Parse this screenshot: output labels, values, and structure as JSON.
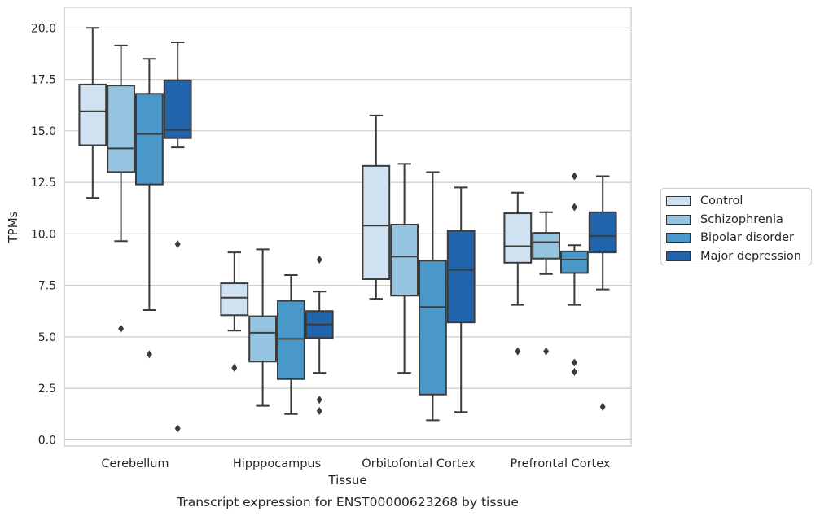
{
  "chart_data": {
    "type": "box",
    "title": "Transcript expression for ENST00000623268 by tissue",
    "xlabel": "Tissue",
    "ylabel": "TPMs",
    "ylim": [
      -0.3,
      21.0
    ],
    "yticks": [
      "0.0",
      "2.5",
      "5.0",
      "7.5",
      "10.0",
      "12.5",
      "15.0",
      "17.5",
      "20.0"
    ],
    "ytick_values": [
      0,
      2.5,
      5,
      7.5,
      10,
      12.5,
      15,
      17.5,
      20
    ],
    "grid": "horizontal",
    "legend_position": "right",
    "categories": [
      "Cerebellum",
      "Hipppocampus",
      "Orbitofontal Cortex",
      "Prefrontal Cortex"
    ],
    "series": [
      {
        "name": "Control",
        "color": "#d0e1f2",
        "boxes": [
          {
            "whislo": 11.75,
            "q1": 14.3,
            "med": 15.95,
            "q3": 17.25,
            "whishi": 20.0,
            "fliers": []
          },
          {
            "whislo": 5.3,
            "q1": 6.05,
            "med": 6.9,
            "q3": 7.6,
            "whishi": 9.1,
            "fliers": [
              3.5
            ]
          },
          {
            "whislo": 6.85,
            "q1": 7.8,
            "med": 10.4,
            "q3": 13.3,
            "whishi": 15.75,
            "fliers": []
          },
          {
            "whislo": 6.55,
            "q1": 8.6,
            "med": 9.4,
            "q3": 11.0,
            "whishi": 12.0,
            "fliers": [
              4.3
            ]
          }
        ]
      },
      {
        "name": "Schizophrenia",
        "color": "#94c4df",
        "boxes": [
          {
            "whislo": 9.65,
            "q1": 13.0,
            "med": 14.15,
            "q3": 17.2,
            "whishi": 19.15,
            "fliers": [
              5.4
            ]
          },
          {
            "whislo": 1.65,
            "q1": 3.8,
            "med": 5.2,
            "q3": 6.0,
            "whishi": 9.25,
            "fliers": []
          },
          {
            "whislo": 3.25,
            "q1": 7.0,
            "med": 8.9,
            "q3": 10.45,
            "whishi": 13.4,
            "fliers": []
          },
          {
            "whislo": 8.05,
            "q1": 8.8,
            "med": 9.6,
            "q3": 10.05,
            "whishi": 11.05,
            "fliers": [
              4.3
            ]
          }
        ]
      },
      {
        "name": "Bipolar disorder",
        "color": "#4a98c9",
        "boxes": [
          {
            "whislo": 6.3,
            "q1": 12.4,
            "med": 14.85,
            "q3": 16.8,
            "whishi": 18.5,
            "fliers": [
              4.15
            ]
          },
          {
            "whislo": 1.25,
            "q1": 2.95,
            "med": 4.9,
            "q3": 6.75,
            "whishi": 8.0,
            "fliers": []
          },
          {
            "whislo": 0.95,
            "q1": 2.2,
            "med": 6.45,
            "q3": 8.7,
            "whishi": 13.0,
            "fliers": []
          },
          {
            "whislo": 6.55,
            "q1": 8.1,
            "med": 8.75,
            "q3": 9.15,
            "whishi": 9.45,
            "fliers": [
              3.75,
              3.3,
              11.3,
              12.8
            ]
          }
        ]
      },
      {
        "name": "Major depression",
        "color": "#2164ab",
        "boxes": [
          {
            "whislo": 14.2,
            "q1": 14.65,
            "med": 15.05,
            "q3": 17.45,
            "whishi": 19.3,
            "fliers": [
              9.5,
              0.55
            ]
          },
          {
            "whislo": 3.25,
            "q1": 4.95,
            "med": 5.6,
            "q3": 6.25,
            "whishi": 7.2,
            "fliers": [
              8.75,
              1.95,
              1.4
            ]
          },
          {
            "whislo": 1.35,
            "q1": 5.7,
            "med": 8.25,
            "q3": 10.15,
            "whishi": 12.25,
            "fliers": []
          },
          {
            "whislo": 7.3,
            "q1": 9.1,
            "med": 9.9,
            "q3": 11.05,
            "whishi": 12.8,
            "fliers": [
              1.6
            ]
          }
        ]
      }
    ]
  }
}
